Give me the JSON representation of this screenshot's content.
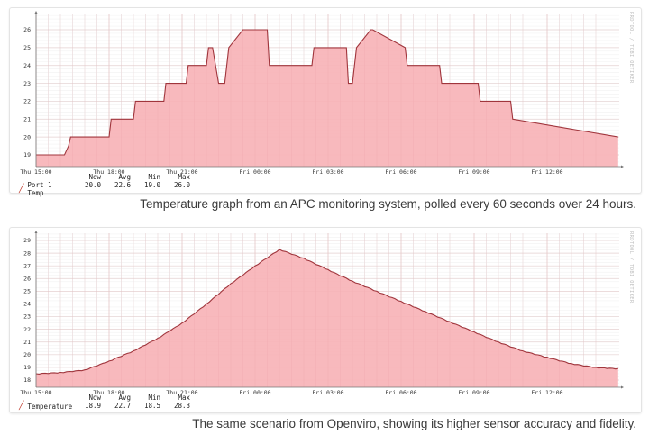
{
  "captions": {
    "top": "Temperature graph from an APC monitoring system, polled every 60 seconds over 24 hours.",
    "bottom": "The same scenario from Openviro, showing its higher sensor accuracy and fidelity."
  },
  "watermark": "RRDTOOL / TOBI OETIKER",
  "colors": {
    "fill": "#f7b3b7",
    "line": "#a0353c",
    "grid": "#ececec",
    "grid_major": "#dcdcdc"
  },
  "legend_headers": [
    "Now",
    "Avg",
    "Min",
    "Max"
  ],
  "charts": [
    {
      "legend": {
        "name": "Port 1 Temp",
        "now": "20.0",
        "avg": "22.6",
        "min": "19.0",
        "max": "26.0"
      }
    },
    {
      "legend": {
        "name": "Temperature",
        "now": "18.9",
        "avg": "22.7",
        "min": "18.5",
        "max": "28.3"
      }
    }
  ],
  "chart_data": [
    {
      "type": "area",
      "title": "Port 1 Temp",
      "source": "APC monitoring system",
      "xlabel": "",
      "ylabel": "",
      "x_ticks": [
        "Thu 15:00",
        "Thu 18:00",
        "Thu 21:00",
        "Fri 00:00",
        "Fri 03:00",
        "Fri 06:00",
        "Fri 09:00",
        "Fri 12:00"
      ],
      "y_ticks": [
        19,
        20,
        21,
        22,
        23,
        24,
        25,
        26
      ],
      "ylim": [
        18.4,
        26.8
      ],
      "grid": true,
      "series": [
        {
          "name": "Port 1 Temp",
          "x": [
            "Thu 15:00",
            "Thu 16:10",
            "Thu 16:20",
            "Thu 16:25",
            "Thu 18:00",
            "Thu 18:05",
            "Thu 19:00",
            "Thu 19:05",
            "Thu 20:15",
            "Thu 20:20",
            "Thu 21:10",
            "Thu 21:15",
            "Thu 22:00",
            "Thu 22:05",
            "Thu 22:15",
            "Thu 22:30",
            "Thu 22:45",
            "Thu 22:55",
            "Thu 23:30",
            "Thu 23:40",
            "Fri 00:30",
            "Fri 00:35",
            "Fri 02:20",
            "Fri 02:25",
            "Fri 03:45",
            "Fri 03:50",
            "Fri 04:00",
            "Fri 04:10",
            "Fri 04:45",
            "Fri 04:50",
            "Fri 06:10",
            "Fri 06:15",
            "Fri 07:35",
            "Fri 07:40",
            "Fri 09:10",
            "Fri 09:15",
            "Fri 10:30",
            "Fri 10:35",
            "Fri 14:55"
          ],
          "values": [
            19,
            19,
            19.5,
            20,
            20,
            21,
            21,
            22,
            22,
            23,
            23,
            24,
            24,
            25,
            25,
            23,
            23,
            25,
            26,
            26,
            26,
            24,
            24,
            25,
            25,
            23,
            23,
            25,
            26,
            26,
            25,
            24,
            24,
            23,
            23,
            22,
            22,
            21,
            20
          ]
        }
      ],
      "stats": {
        "now": 20.0,
        "avg": 22.6,
        "min": 19.0,
        "max": 26.0
      }
    },
    {
      "type": "area",
      "title": "Temperature",
      "source": "Openviro",
      "xlabel": "",
      "ylabel": "",
      "x_ticks": [
        "Thu 15:00",
        "Thu 18:00",
        "Thu 21:00",
        "Fri 00:00",
        "Fri 03:00",
        "Fri 06:00",
        "Fri 09:00",
        "Fri 12:00"
      ],
      "y_ticks": [
        18,
        19,
        20,
        21,
        22,
        23,
        24,
        25,
        26,
        27,
        28,
        29
      ],
      "ylim": [
        17.5,
        29.3
      ],
      "grid": true,
      "series": [
        {
          "name": "Temperature",
          "x": [
            "Thu 15:00",
            "Thu 16:00",
            "Thu 17:00",
            "Thu 18:00",
            "Thu 19:00",
            "Thu 20:00",
            "Thu 21:00",
            "Thu 22:00",
            "Thu 23:00",
            "Fri 00:00",
            "Fri 01:00",
            "Fri 02:00",
            "Fri 03:00",
            "Fri 04:00",
            "Fri 05:00",
            "Fri 06:00",
            "Fri 07:00",
            "Fri 08:00",
            "Fri 09:00",
            "Fri 10:00",
            "Fri 11:00",
            "Fri 12:00",
            "Fri 13:00",
            "Fri 14:00",
            "Fri 14:55"
          ],
          "values": [
            18.5,
            18.6,
            18.8,
            19.5,
            20.3,
            21.3,
            22.5,
            24.0,
            25.6,
            27.0,
            28.3,
            27.6,
            26.7,
            25.8,
            25.0,
            24.2,
            23.4,
            22.6,
            21.8,
            21.0,
            20.3,
            19.8,
            19.3,
            19.0,
            18.9
          ]
        }
      ],
      "stats": {
        "now": 18.9,
        "avg": 22.7,
        "min": 18.5,
        "max": 28.3
      }
    }
  ]
}
